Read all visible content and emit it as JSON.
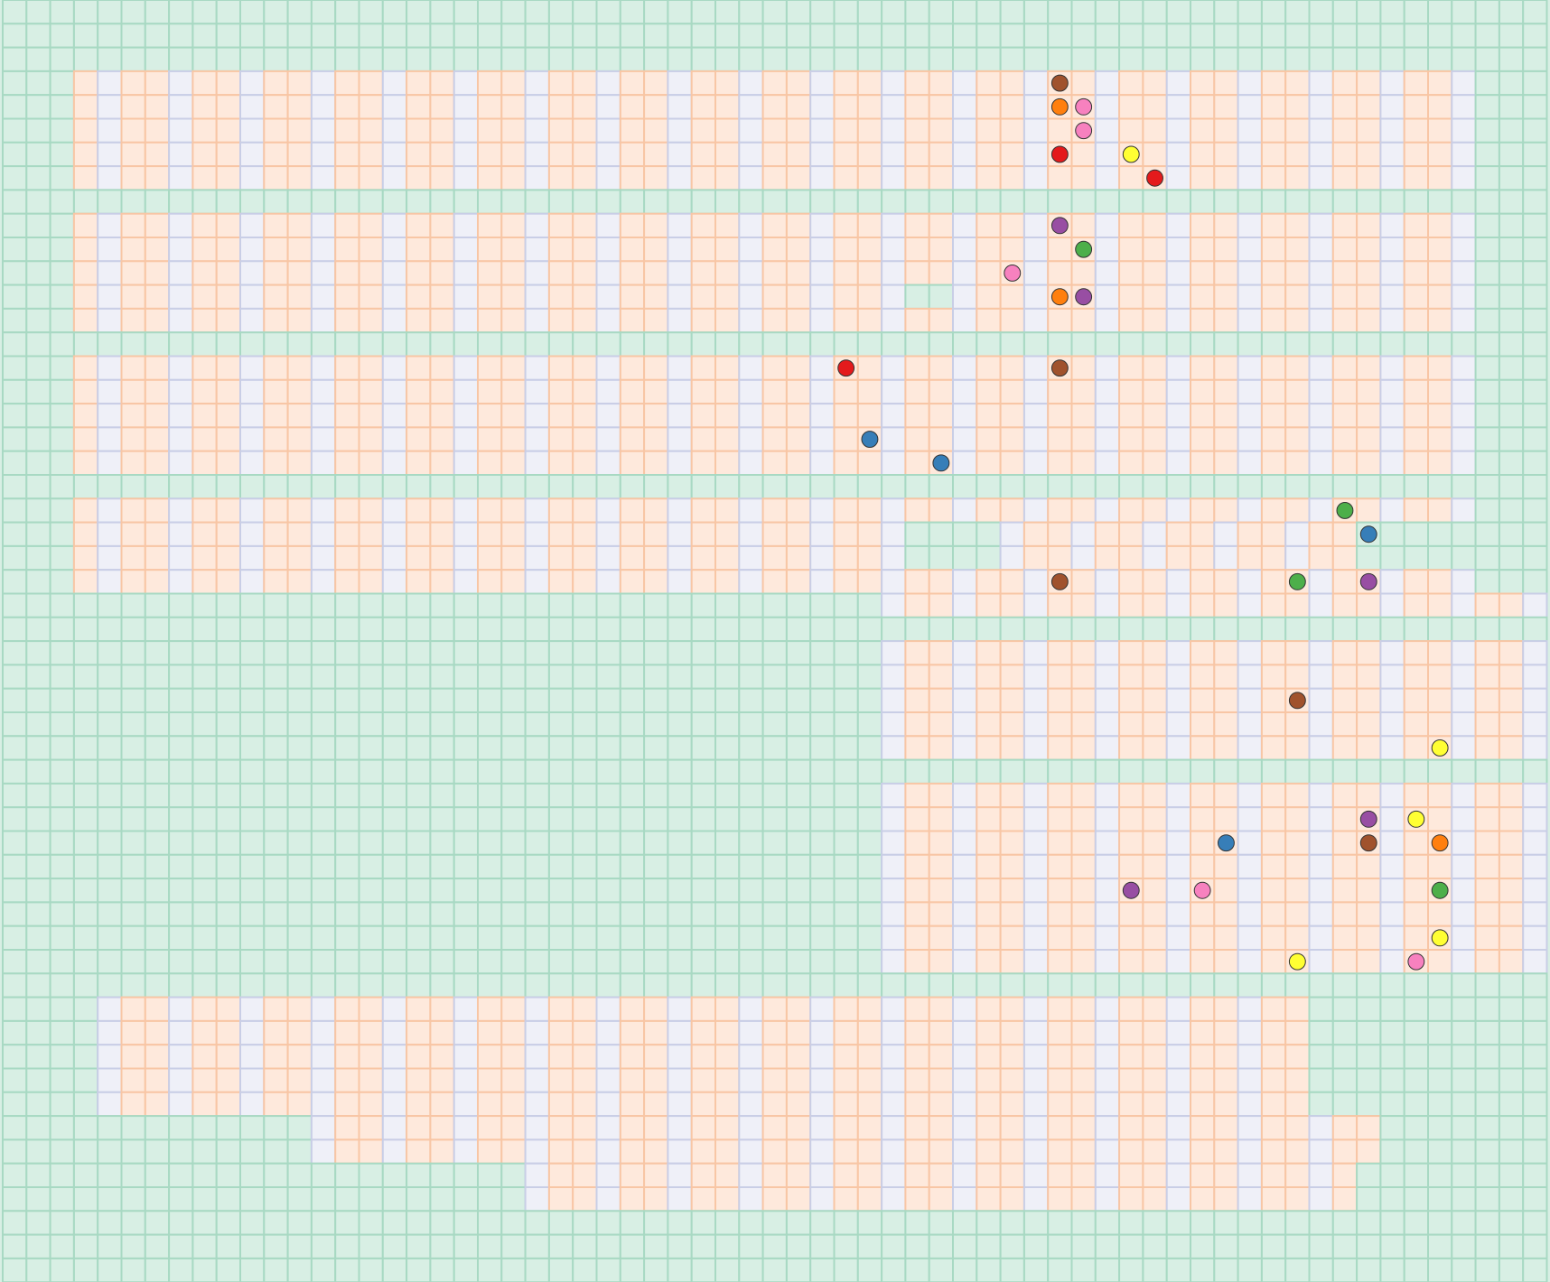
{
  "board": {
    "cols": 65,
    "rows": 54,
    "cell_types": {
      "g": "outside",
      "o": "floor",
      "b": "aisle"
    },
    "colors": {
      "outside_fill": "#d8efe4",
      "outside_stroke": "#a8d9c3",
      "floor_fill": "#fee9dc",
      "floor_stroke": "#f8c6a5",
      "aisle_fill": "#eff0f8",
      "aisle_stroke": "#c9cee6",
      "token_stroke": "#333333"
    },
    "rows_map": [
      "ggggggggggggggggggggggggggggggggggggggggggggggggggggggggggggggggg",
      "ggggggggggggggggggggggggggggggggggggggggggggggggggggggggggggggggg",
      "ggggggggggggggggggggggggggggggggggggggggggggggggggggggggggggggggg",
      "gggoboobooboobooboobooboobooboobooboobooboobooboobooboobooboobggg",
      "gggoboobooboobooboobooboobooboobooboobooboobooboobooboobooboobggg",
      "gggoboobooboobooboobooboobooboobooboobooboobooboobooboobooboobggg",
      "gggoboobooboobooboobooboobooboobooboobooboobooboobooboobooboobggg",
      "gggoboobooboobooboobooboobooboobooboobooboobooboobooboobooboobggg",
      "ggggggggggggggggggggggggggggggggggggggggggggggggggggggggggggggggg",
      "gggoboobooboobooboobooboobooboobooboobooboobooboobooboobooboobggg",
      "gggoboobooboobooboobooboobooboobooboobooboobooboobooboobooboobggg",
      "gggoboobooboobooboobooboobooboobooboobooboobooboobooboobooboobggg",
      "gggoboobooboobooboobooboobooboobooboobggboobooboobooboobooboobggg",
      "gggoboobooboobooboobooboobooboobooboobooboobooboobooboobooboobggg",
      "ggggggggggggggggggggggggggggggggggggggggggggggggggggggggggggggggg",
      "gggoboobooboobooboobooboobooboobooboobooboobooboobooboobooboobggg",
      "gggoboobooboobooboobooboobooboobooboobooboobooboobooboobooboobggg",
      "gggoboobooboobooboobooboobooboobooboobooboobooboobooboobooboobggg",
      "gggoboobooboobooboobooboobooboobooboobooboobooboobooboobooboobggg",
      "gggoboobooboobooboobooboobooboobooboobooboobooboobooboobooboobggg",
      "ggggggggggggggggggggggggggggggggggggggggggggggggggggggggggggggggg",
      "gggoboobooboobooboobooboobooboobooboobooboobooboobooboobooboobggg",
      "gggoboobooboobooboobooboobooboobooboobggggbooboobooboobooggggggg",
      "gggoboobooboobooboobooboobooboobooboobggggbooboobooboobooggggggg",
      "gggoboobooboobooboobooboobooboobooboobooboobooboobooboobooboobggg",
      "gggggggggggggggggggggggggggggggggggggboobooboobooboobooboobooboobggg",
      "ggggggggggggggggggggggggggggggggggggggggggggggggggggggggggggggggg",
      "gggggggggggggggggggggggggggggggggggggboobooboobooboobooboobooboobggg",
      "gggggggggggggggggggggggggggggggggggggboobooboobooboobooboobooboobggg",
      "gggggggggggggggggggggggggggggggggggggboobooboobooboobooboobooboobggg",
      "gggggggggggggggggggggggggggggggggggggboobooboobooboobooboobooboobggg",
      "gggggggggggggggggggggggggggggggggggggboobooboobooboobooboobooboobggg",
      "ggggggggggggggggggggggggggggggggggggggggggggggggggggggggggggggggg",
      "gggggggggggggggggggggggggggggggggggggboobooboobooboobooboobooboobggg",
      "gggggggggggggggggggggggggggggggggggggboobooboobooboobooboobooboobggg",
      "gggggggggggggggggggggggggggggggggggggboobooboobooboobooboobooboobggg",
      "gggggggggggggggggggggggggggggggggggggboobooboobooboobooboobooboobggg",
      "gggggggggggggggggggggggggggggggggggggboobooboobooboobooboobooboobggg",
      "gggggggggggggggggggggggggggggggggggggboobooboobooboobooboobooboobggg",
      "gggggggggggggggggggggggggggggggggggggboobooboobooboobooboobooboobggg",
      "gggggggggggggggggggggggggggggggggggggboobooboobooboobooboobooboobggg",
      "ggggggggggggggggggggggggggggggggggggggggggggggggggggggggggggggggg",
      "ggggbooboobooboobooboobooboobooboobooboobooboobooboobooggggggggggg",
      "ggggbooboobooboobooboobooboobooboobooboobooboobooboobooggggggggggg",
      "ggggbooboobooboobooboobooboobooboobooboobooboobooboobooggggggggggg",
      "ggggbooboobooboobooboobooboobooboobooboobooboobooboobooggggggggggg",
      "ggggbooboobooboobooboobooboobooboobooboobooboobooboobooggggggggggg",
      "gggggggggggggbooboobooboobooboobooboobooboobooboobooboobooggggggggggg",
      "gggggggggggggbooboobooboobooboobooboobooboobooboobooboobooggggggggggg",
      "ggggggggggggggggggggggbooboobooboobooboobooboobooboobooboggggggggggggg",
      "ggggggggggggggggggggggbooboobooboobooboobooboobooboobooboggggggggggggg",
      "ggggggggggggggggggggggggggggggggggggggggggggggggggggggggggggggggg",
      "ggggggggggggggggggggggggggggggggggggggggggggggggggggggggggggggggg",
      "ggggggggggggggggggggggggggggggggggggggggggggggggggggggggggggggggg"
    ],
    "tokens": [
      {
        "col": 44,
        "row": 3,
        "color": "#a0522d"
      },
      {
        "col": 44,
        "row": 4,
        "color": "#ff7f0e"
      },
      {
        "col": 45,
        "row": 4,
        "color": "#f781bf"
      },
      {
        "col": 45,
        "row": 5,
        "color": "#f781bf"
      },
      {
        "col": 44,
        "row": 6,
        "color": "#e41a1c"
      },
      {
        "col": 47,
        "row": 6,
        "color": "#ffff33"
      },
      {
        "col": 48,
        "row": 7,
        "color": "#e41a1c"
      },
      {
        "col": 44,
        "row": 9,
        "color": "#984ea3"
      },
      {
        "col": 45,
        "row": 10,
        "color": "#4daf4a"
      },
      {
        "col": 42,
        "row": 11,
        "color": "#f781bf"
      },
      {
        "col": 44,
        "row": 12,
        "color": "#ff7f0e"
      },
      {
        "col": 45,
        "row": 12,
        "color": "#984ea3"
      },
      {
        "col": 35,
        "row": 15,
        "color": "#e41a1c"
      },
      {
        "col": 44,
        "row": 15,
        "color": "#a0522d"
      },
      {
        "col": 36,
        "row": 18,
        "color": "#377eb8"
      },
      {
        "col": 39,
        "row": 19,
        "color": "#377eb8"
      },
      {
        "col": 56,
        "row": 21,
        "color": "#4daf4a"
      },
      {
        "col": 57,
        "row": 22,
        "color": "#377eb8"
      },
      {
        "col": 44,
        "row": 24,
        "color": "#a0522d"
      },
      {
        "col": 54,
        "row": 24,
        "color": "#4daf4a"
      },
      {
        "col": 57,
        "row": 24,
        "color": "#984ea3"
      },
      {
        "col": 54,
        "row": 29,
        "color": "#a0522d"
      },
      {
        "col": 60,
        "row": 31,
        "color": "#ffff33"
      },
      {
        "col": 57,
        "row": 34,
        "color": "#984ea3"
      },
      {
        "col": 59,
        "row": 34,
        "color": "#ffff33"
      },
      {
        "col": 51,
        "row": 35,
        "color": "#377eb8"
      },
      {
        "col": 57,
        "row": 35,
        "color": "#a0522d"
      },
      {
        "col": 60,
        "row": 35,
        "color": "#ff7f0e"
      },
      {
        "col": 47,
        "row": 37,
        "color": "#984ea3"
      },
      {
        "col": 50,
        "row": 37,
        "color": "#f781bf"
      },
      {
        "col": 60,
        "row": 37,
        "color": "#4daf4a"
      },
      {
        "col": 60,
        "row": 39,
        "color": "#ffff33"
      },
      {
        "col": 54,
        "row": 40,
        "color": "#ffff33"
      },
      {
        "col": 59,
        "row": 40,
        "color": "#f781bf"
      }
    ]
  }
}
